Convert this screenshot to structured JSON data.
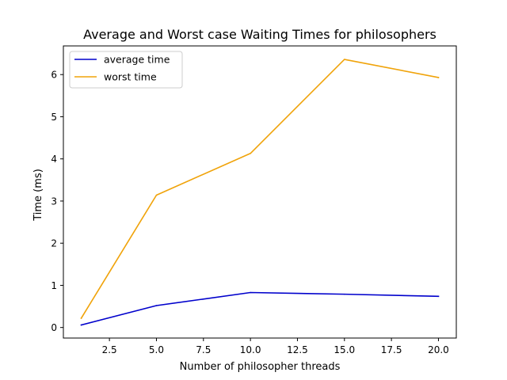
{
  "chart_data": {
    "type": "line",
    "title": "Average and Worst case Waiting Times for philosophers",
    "xlabel": "Number of philosopher threads",
    "ylabel": "Time (ms)",
    "x": [
      1,
      5,
      10,
      15,
      20
    ],
    "series": [
      {
        "name": "average time",
        "color": "#0000cc",
        "values": [
          0.06,
          0.52,
          0.83,
          0.79,
          0.74
        ]
      },
      {
        "name": "worst time",
        "color": "#f0a30a",
        "values": [
          0.22,
          3.14,
          4.13,
          6.36,
          5.93
        ]
      }
    ],
    "xlim": [
      0.05,
      20.95
    ],
    "ylim": [
      -0.25,
      6.68
    ],
    "xticks": [
      2.5,
      5.0,
      7.5,
      10.0,
      12.5,
      15.0,
      17.5,
      20.0
    ],
    "xtick_labels": [
      "2.5",
      "5.0",
      "7.5",
      "10.0",
      "12.5",
      "15.0",
      "17.5",
      "20.0"
    ],
    "yticks": [
      0,
      1,
      2,
      3,
      4,
      5,
      6
    ],
    "ytick_labels": [
      "0",
      "1",
      "2",
      "3",
      "4",
      "5",
      "6"
    ],
    "grid": false,
    "legend_position": "top-left"
  }
}
